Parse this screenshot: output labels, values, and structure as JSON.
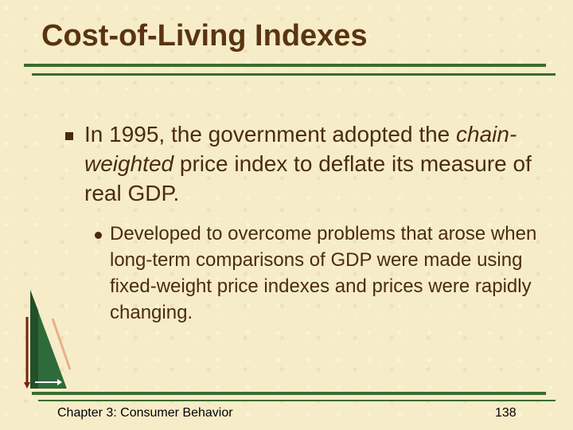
{
  "slide": {
    "title": "Cost-of-Living Indexes",
    "bullet1": {
      "before": "In 1995, the government adopted the ",
      "emphasis": "chain-weighted",
      "after": " price index to deflate its measure of real GDP."
    },
    "bullet2": "Developed to overcome problems that arose when long-term comparisons of GDP were made using fixed-weight price indexes and prices were rapidly changing.",
    "footer": {
      "chapter": "Chapter 3: Consumer Behavior",
      "page": "138"
    },
    "colors": {
      "background": "#f7ecc8",
      "title": "#5a3410",
      "rules": "#3d6b2e",
      "text": "#4a2c10"
    },
    "icons": [
      "square-bullet-icon",
      "round-bullet-icon",
      "green-triangle-logo-icon"
    ]
  }
}
